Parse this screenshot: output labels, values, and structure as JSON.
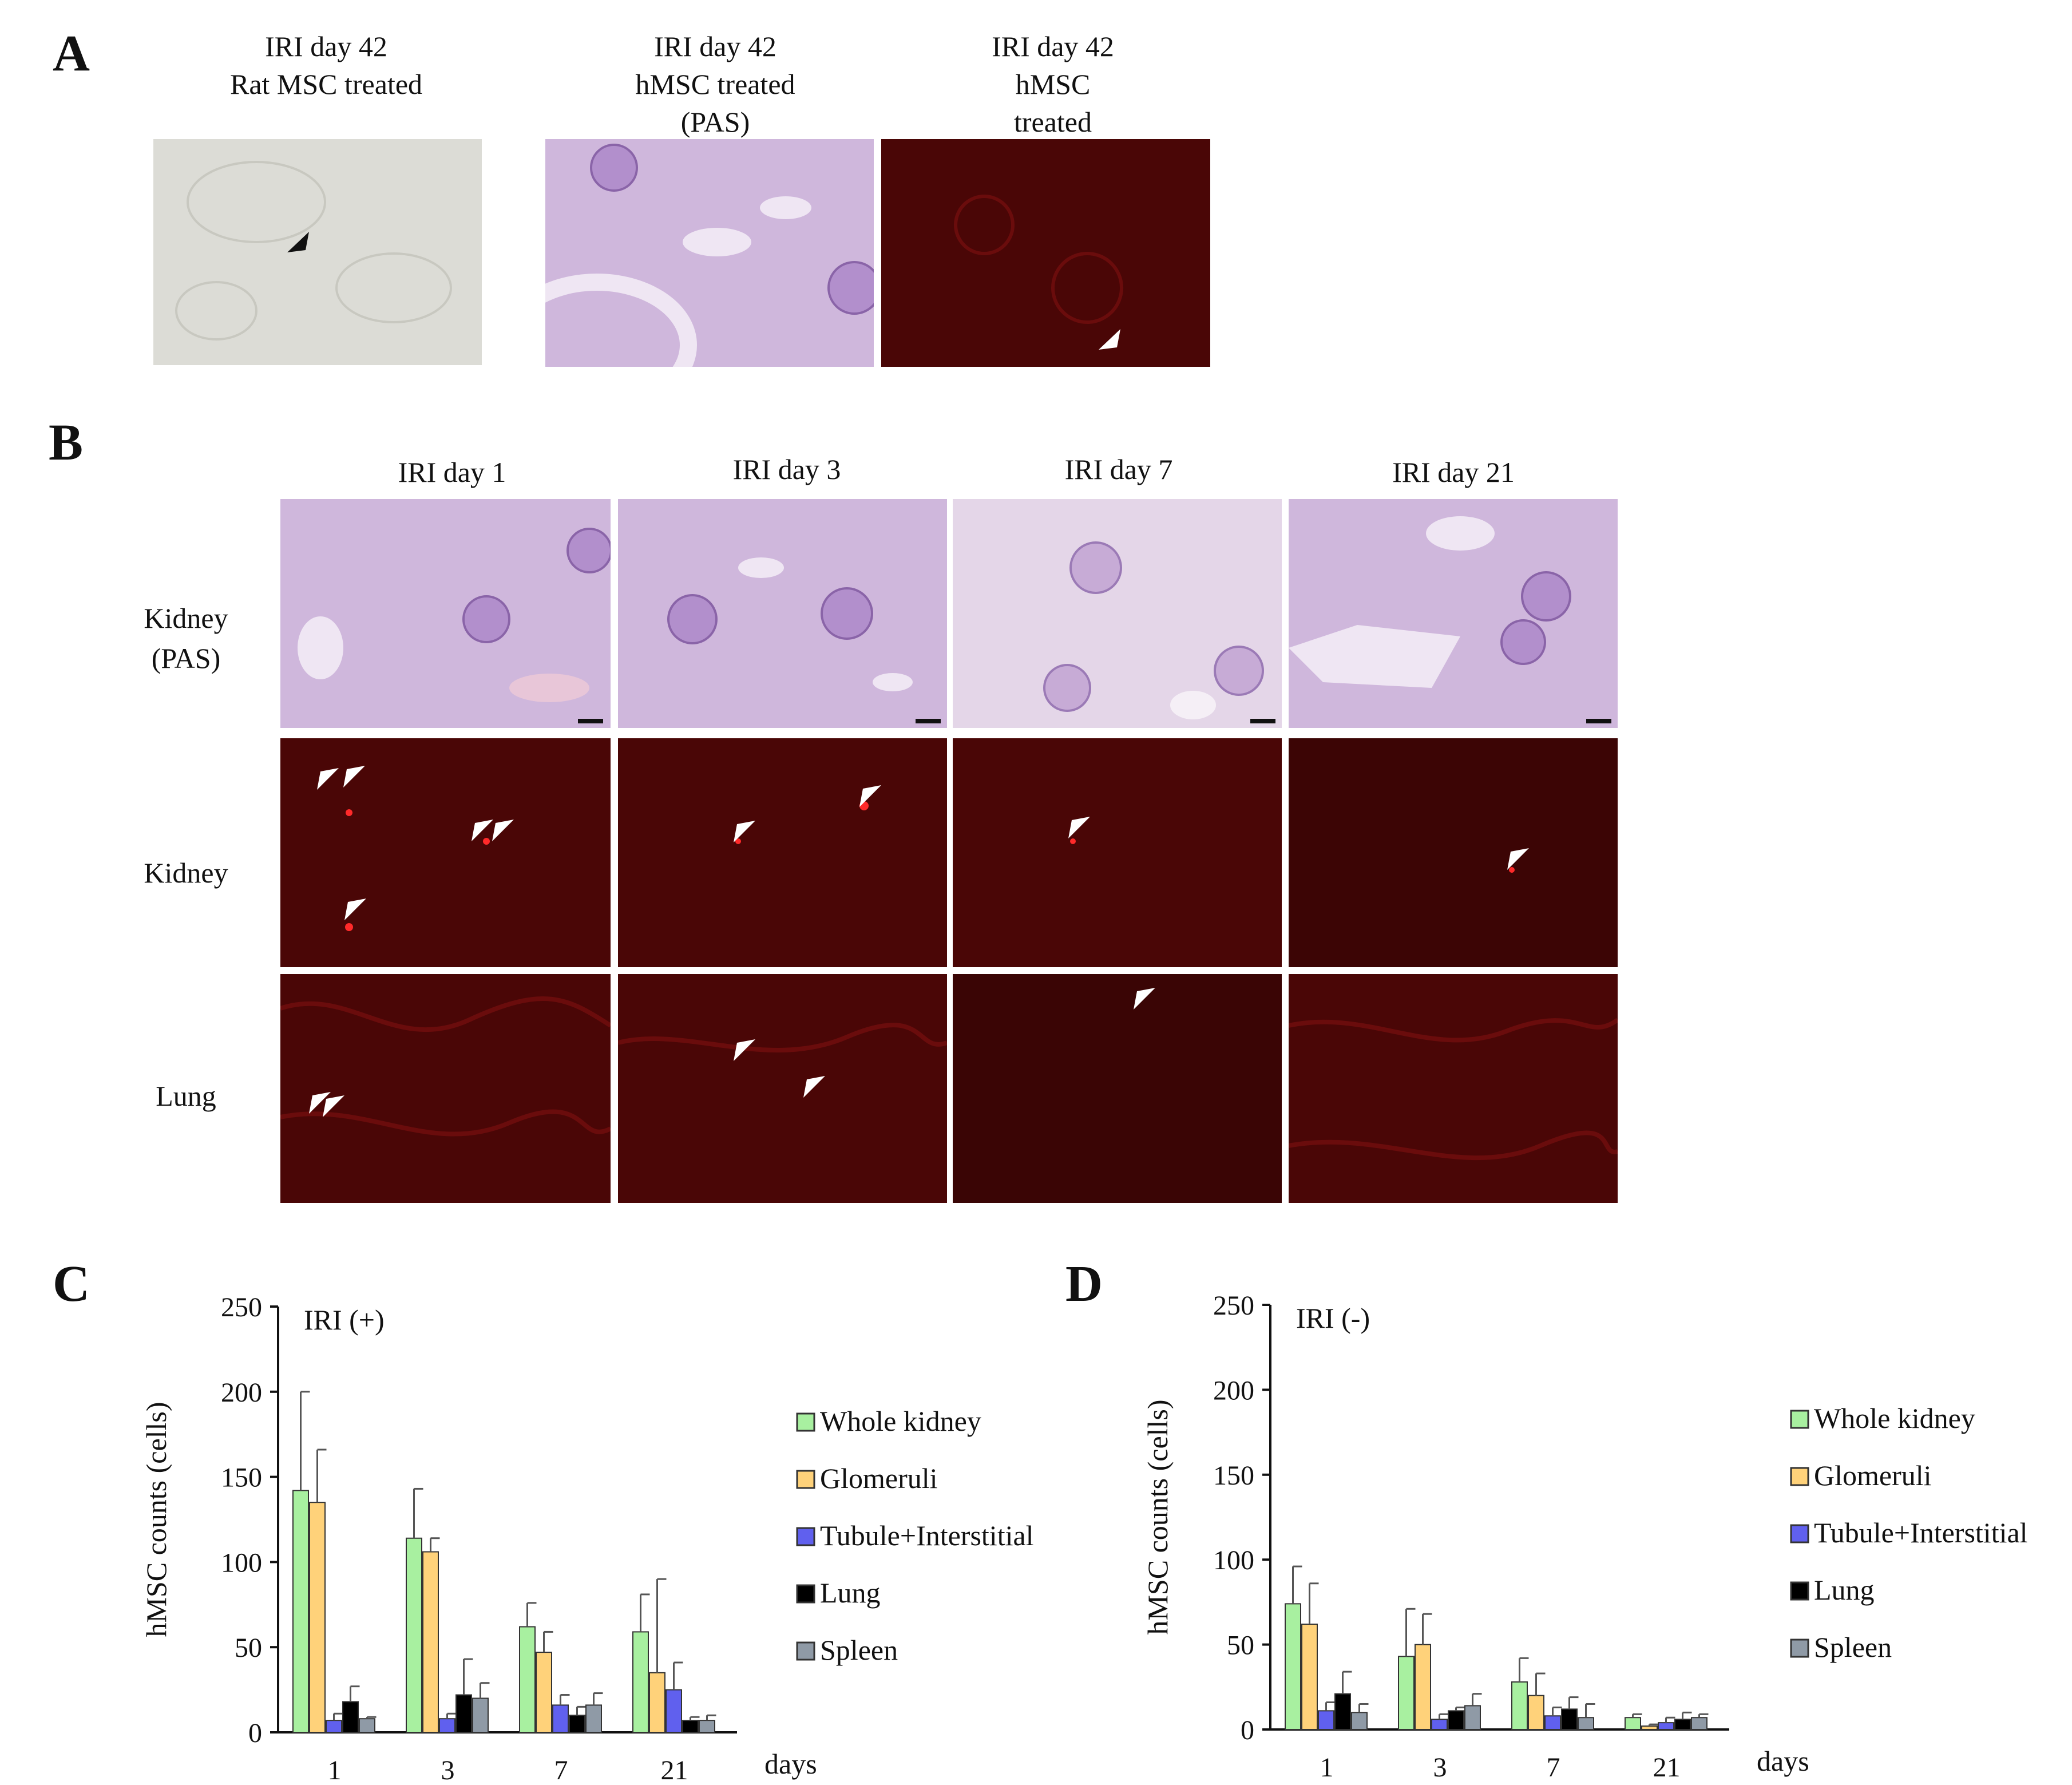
{
  "panels": {
    "A": {
      "label": "A",
      "images": [
        {
          "caption": [
            "IRI day 42",
            "Rat MSC treated"
          ],
          "kind": "brightfield"
        },
        {
          "caption": [
            "IRI day 42",
            "hMSC treated",
            "(PAS)"
          ],
          "kind": "pas"
        },
        {
          "caption": [
            "IRI day 42",
            "hMSC",
            "treated"
          ],
          "kind": "fluorescence"
        }
      ]
    },
    "B": {
      "label": "B",
      "columns": [
        "IRI day 1",
        "IRI day 3",
        "IRI day 7",
        "IRI day 21"
      ],
      "rows": [
        {
          "label": [
            "Kidney",
            "(PAS)"
          ],
          "kind": "pas"
        },
        {
          "label": [
            "Kidney"
          ],
          "kind": "fluorescence"
        },
        {
          "label": [
            "Lung"
          ],
          "kind": "fluorescence"
        }
      ]
    },
    "C": {
      "label": "C"
    },
    "D": {
      "label": "D"
    }
  },
  "colors": {
    "whole_kidney": "#a8f0a0",
    "glomeruli": "#ffd27a",
    "tubule": "#6060ee",
    "lung": "#000000",
    "spleen": "#8f9aa6",
    "pas": "#cfb7dc",
    "fluorescence": "#4a0606",
    "brightfield": "#dcdcd6"
  },
  "icons": [
    "arrowhead-icon"
  ],
  "chart_data": [
    {
      "type": "bar",
      "title": "IRI (+)",
      "xlabel": "days",
      "ylabel": "hMSC counts (cells)",
      "ylim": [
        0,
        250
      ],
      "yticks": [
        0,
        50,
        100,
        150,
        200,
        250
      ],
      "categories": [
        "1",
        "3",
        "7",
        "21"
      ],
      "legend_position": "right",
      "series": [
        {
          "name": "Whole kidney",
          "values": [
            142,
            114,
            62,
            59
          ],
          "errors": [
            58,
            29,
            14,
            22
          ],
          "color": "#a8f0a0"
        },
        {
          "name": "Glomeruli",
          "values": [
            135,
            106,
            47,
            35
          ],
          "errors": [
            31,
            8,
            12,
            55
          ],
          "color": "#ffd27a"
        },
        {
          "name": "Tubule+Interstitial",
          "values": [
            7,
            8,
            16,
            25
          ],
          "errors": [
            4,
            3,
            6,
            16
          ],
          "color": "#6060ee"
        },
        {
          "name": "Lung",
          "values": [
            18,
            22,
            10,
            7
          ],
          "errors": [
            9,
            21,
            5,
            2
          ],
          "color": "#000000"
        },
        {
          "name": "Spleen",
          "values": [
            8,
            20,
            16,
            7
          ],
          "errors": [
            1,
            9,
            7,
            3
          ],
          "color": "#8f9aa6"
        }
      ]
    },
    {
      "type": "bar",
      "title": "IRI (-)",
      "xlabel": "days",
      "ylabel": "hMSC counts (cells)",
      "ylim": [
        0,
        250
      ],
      "yticks": [
        0,
        50,
        100,
        150,
        200,
        250
      ],
      "categories": [
        "1",
        "3",
        "7",
        "21"
      ],
      "legend_position": "right",
      "series": [
        {
          "name": "Whole kidney",
          "values": [
            74,
            43,
            28,
            7
          ],
          "errors": [
            22,
            28,
            14,
            2
          ],
          "color": "#a8f0a0"
        },
        {
          "name": "Glomeruli",
          "values": [
            62,
            50,
            20,
            2
          ],
          "errors": [
            24,
            18,
            13,
            1
          ],
          "color": "#ffd27a"
        },
        {
          "name": "Tubule+Interstitial",
          "values": [
            11,
            6,
            8,
            4
          ],
          "errors": [
            5,
            3,
            5,
            3
          ],
          "color": "#6060ee"
        },
        {
          "name": "Lung",
          "values": [
            21,
            11,
            12,
            6
          ],
          "errors": [
            13,
            2,
            7,
            4
          ],
          "color": "#000000"
        },
        {
          "name": "Spleen",
          "values": [
            10,
            14,
            7,
            7
          ],
          "errors": [
            5,
            7,
            8,
            2
          ],
          "color": "#8f9aa6"
        }
      ]
    }
  ]
}
